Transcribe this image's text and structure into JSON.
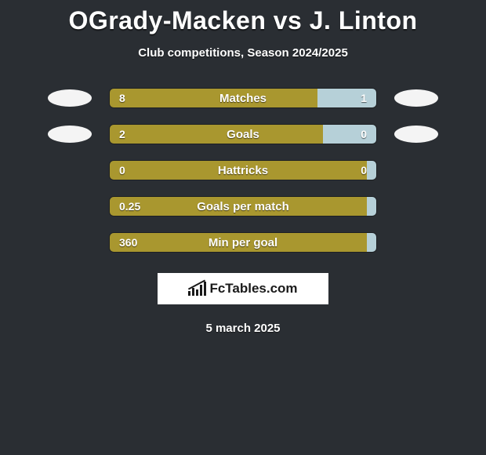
{
  "title": "OGrady-Macken vs J. Linton",
  "subtitle": "Club competitions, Season 2024/2025",
  "date": "5 march 2025",
  "colors": {
    "left": "#a9972f",
    "right": "#b6d0d8",
    "rightAlt": "#b6d0d8",
    "background": "#2a2e33"
  },
  "stats": [
    {
      "label": "Matches",
      "leftValue": "8",
      "rightValue": "1",
      "leftPct": 78,
      "rightPct": 22,
      "leftColor": "#a9972f",
      "rightColor": "#b6d0d8",
      "showFlags": true
    },
    {
      "label": "Goals",
      "leftValue": "2",
      "rightValue": "0",
      "leftPct": 80,
      "rightPct": 20,
      "leftColor": "#a9972f",
      "rightColor": "#b6d0d8",
      "showFlags": true
    },
    {
      "label": "Hattricks",
      "leftValue": "0",
      "rightValue": "0",
      "leftPct": 97,
      "rightPct": 3,
      "leftColor": "#a9972f",
      "rightColor": "#b6d0d8",
      "showFlags": false
    },
    {
      "label": "Goals per match",
      "leftValue": "0.25",
      "rightValue": "",
      "leftPct": 100,
      "rightPct": 0,
      "leftColor": "#a9972f",
      "rightColor": "#b6d0d8",
      "showFlags": false
    },
    {
      "label": "Min per goal",
      "leftValue": "360",
      "rightValue": "",
      "leftPct": 100,
      "rightPct": 0,
      "leftColor": "#a9972f",
      "rightColor": "#b6d0d8",
      "showFlags": false
    }
  ],
  "logo": "FcTables.com"
}
